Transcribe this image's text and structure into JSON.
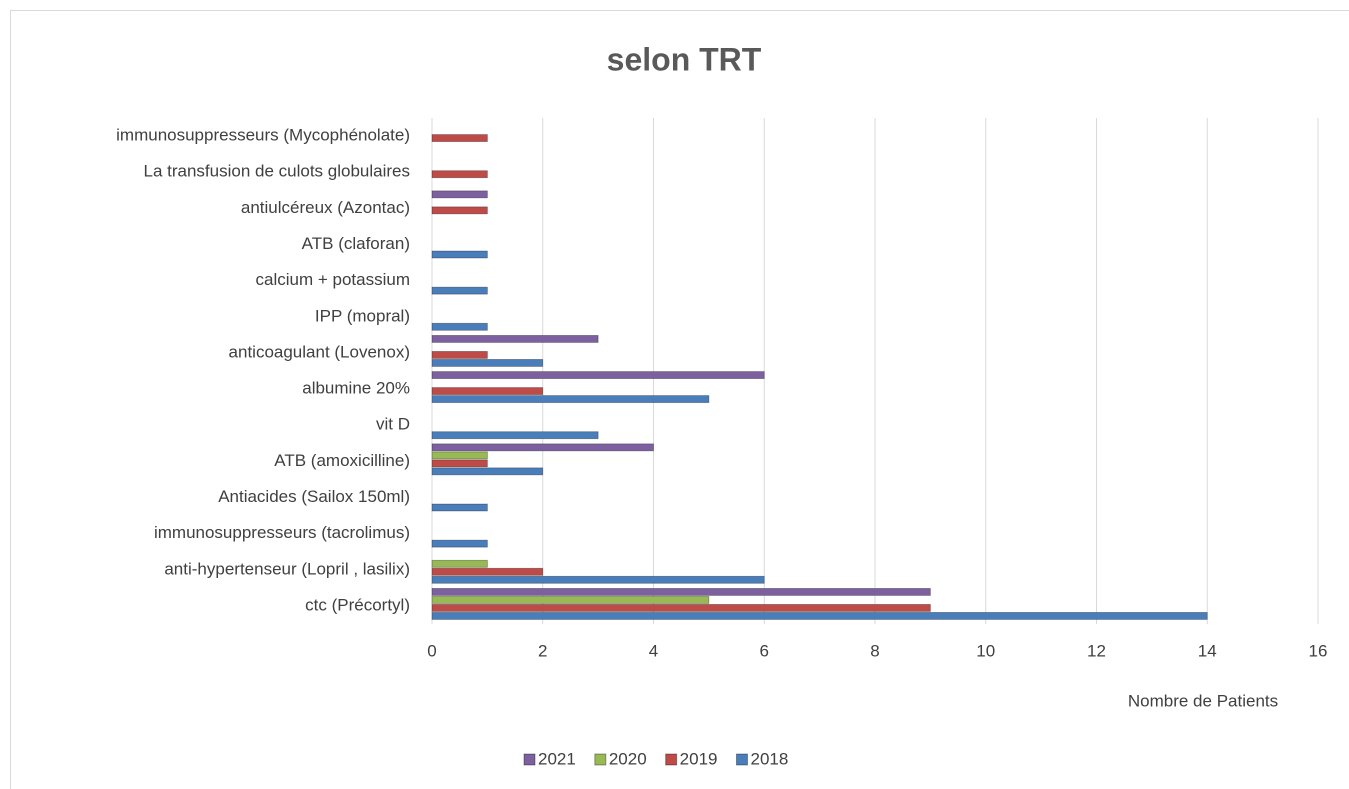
{
  "chart_data": {
    "type": "bar",
    "orientation": "horizontal",
    "title": "selon TRT",
    "x_label": "Nombre de Patients",
    "categories": [
      "ctc (Précortyl)",
      "anti-hypertenseur (Lopril , lasilix)",
      "immunosuppresseurs (tacrolimus)",
      "Antiacides (Sailox 150ml)",
      "ATB (amoxicilline)",
      "vit D",
      "albumine 20%",
      "anticoagulant (Lovenox)",
      "IPP (mopral)",
      "calcium + potassium",
      "ATB (claforan)",
      "antiulcéreux (Azontac)",
      "La transfusion de culots globulaires",
      "immunosuppresseurs (Mycophénolate)"
    ],
    "series": [
      {
        "name": "2018",
        "color": "#4a7ebb",
        "values": [
          14,
          6,
          1,
          1,
          2,
          3,
          5,
          2,
          1,
          1,
          1,
          null,
          null,
          null
        ]
      },
      {
        "name": "2019",
        "color": "#be4b48",
        "values": [
          9,
          2,
          null,
          null,
          1,
          null,
          2,
          1,
          null,
          null,
          null,
          1,
          1,
          1
        ]
      },
      {
        "name": "2020",
        "color": "#98b954",
        "values": [
          5,
          1,
          null,
          null,
          1,
          null,
          null,
          null,
          null,
          null,
          null,
          null,
          null,
          null
        ]
      },
      {
        "name": "2021",
        "color": "#7d60a0",
        "values": [
          9,
          null,
          null,
          null,
          4,
          null,
          6,
          3,
          null,
          null,
          null,
          1,
          null,
          null
        ]
      }
    ],
    "xlim": [
      0,
      16
    ],
    "xticks": [
      0,
      2,
      4,
      6,
      8,
      10,
      12,
      14,
      16
    ],
    "grid": true,
    "legend": "bottom"
  }
}
